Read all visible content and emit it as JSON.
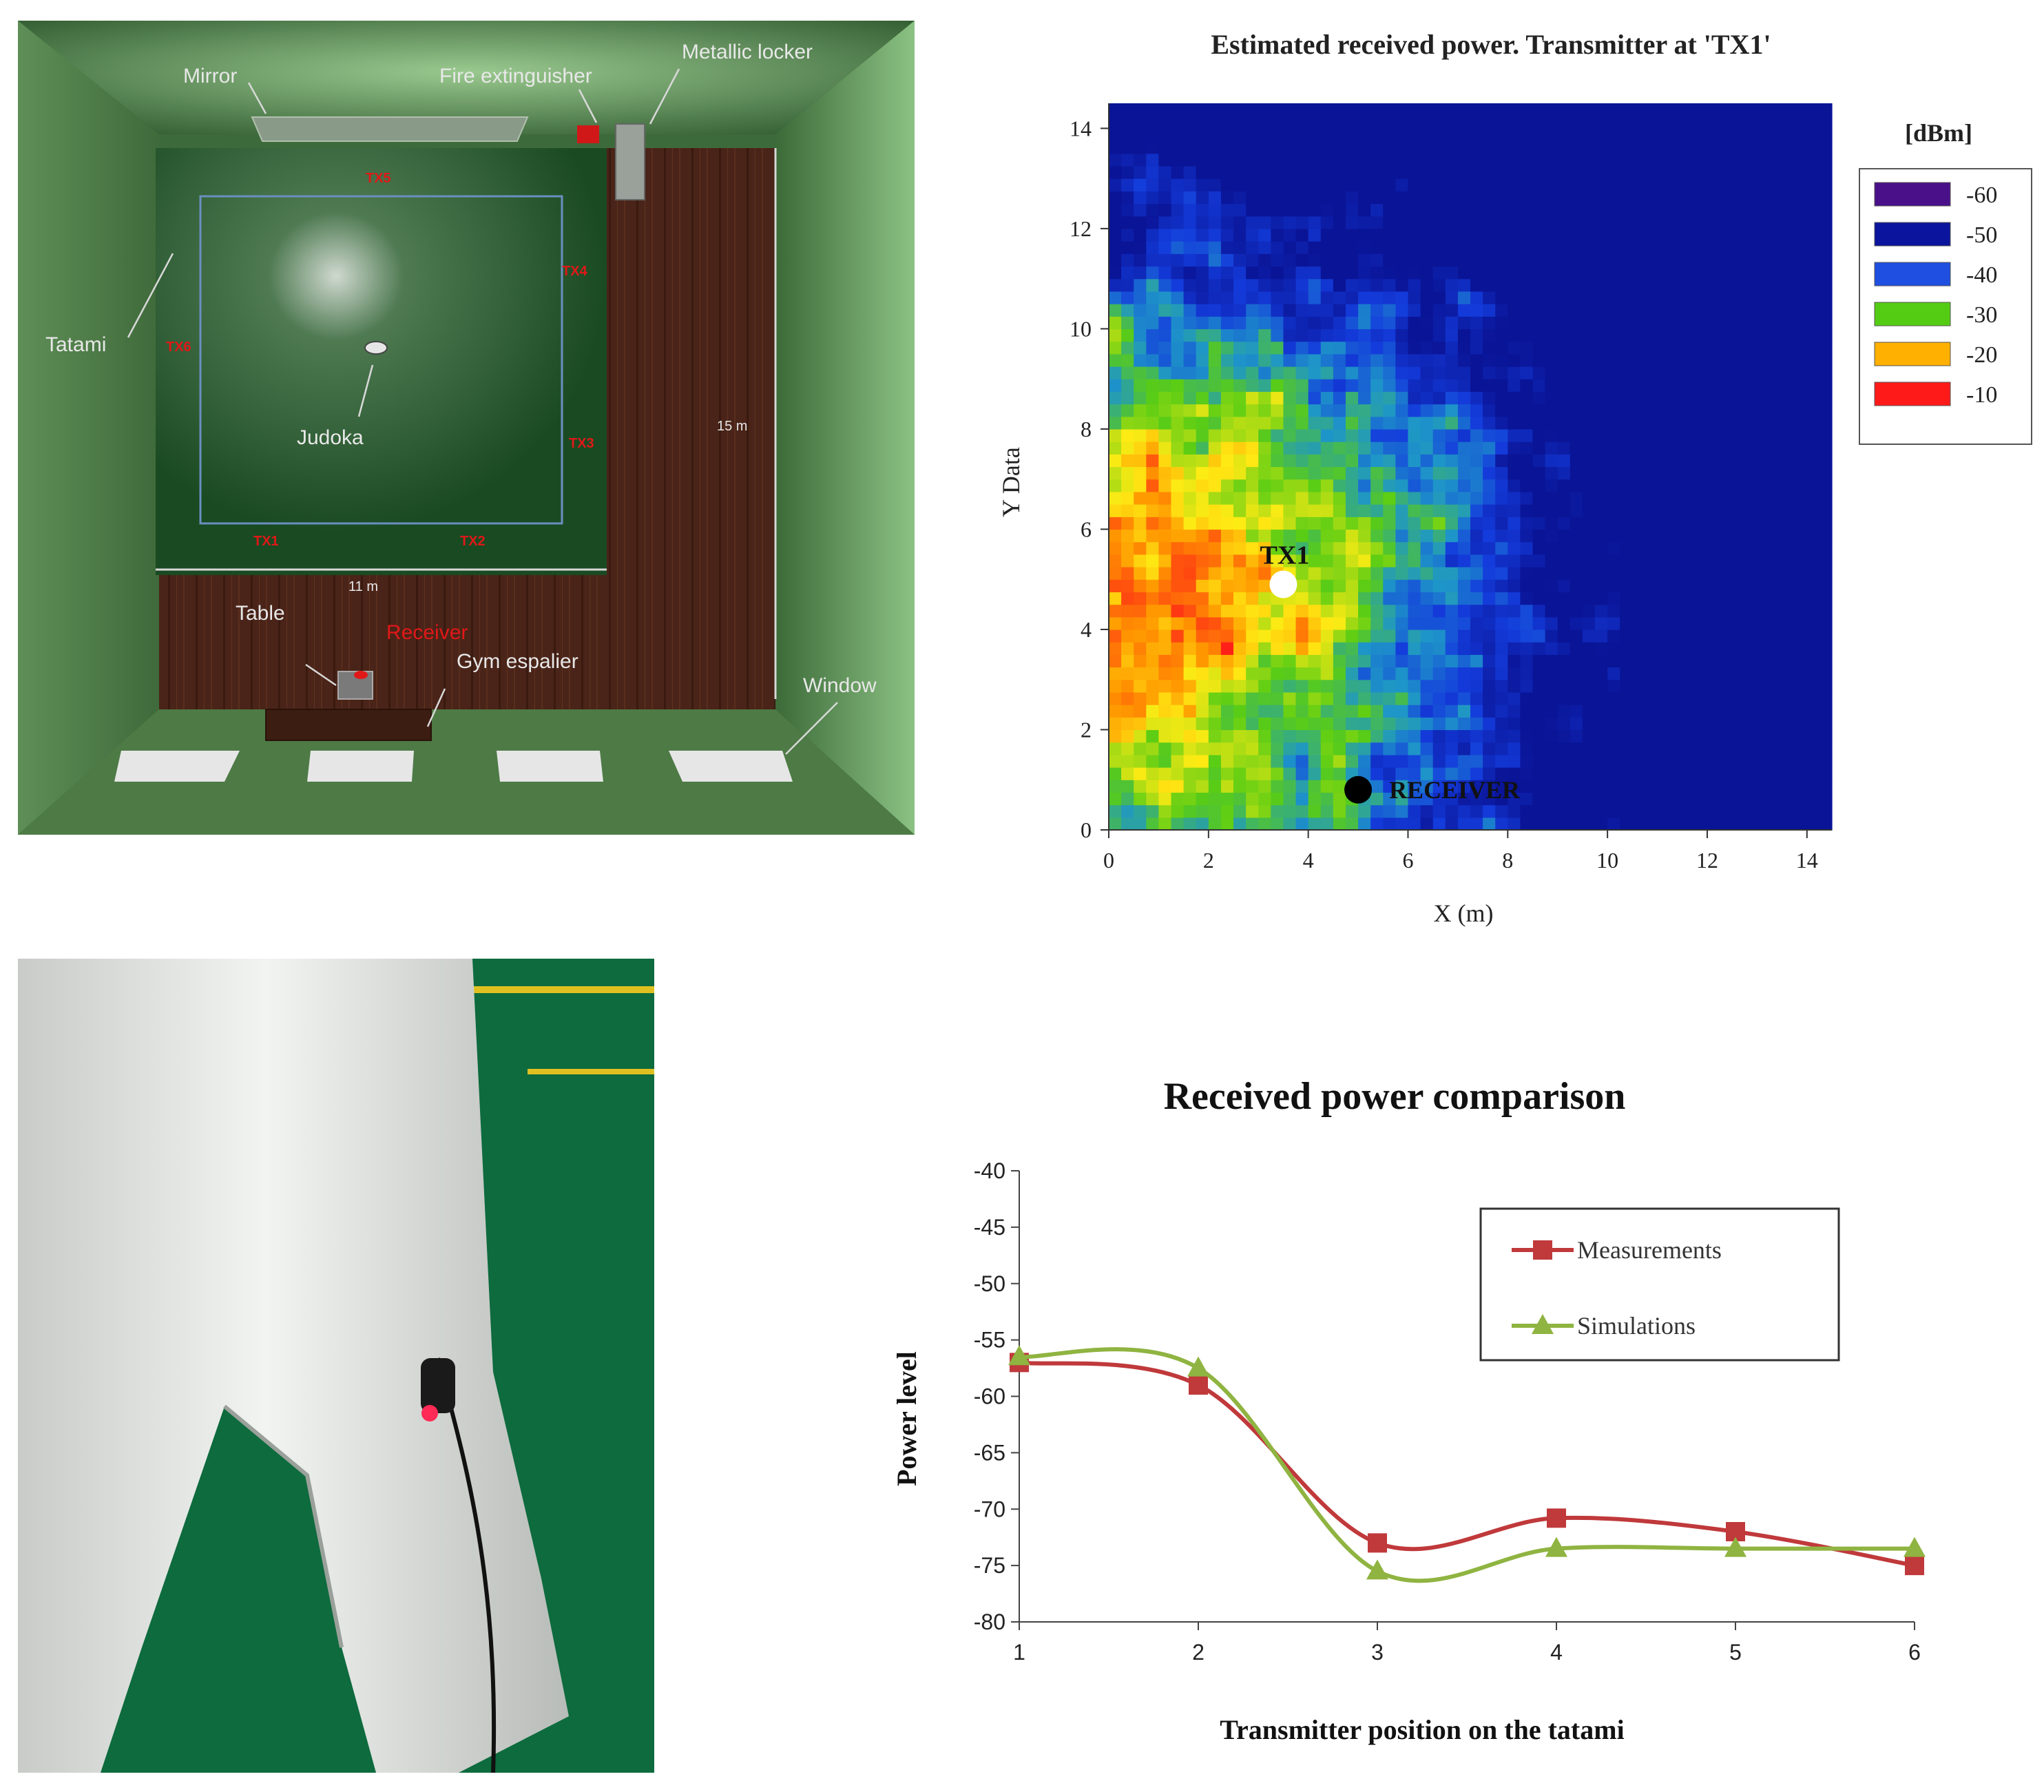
{
  "room": {
    "labels": {
      "mirror": "Mirror",
      "fire_extinguisher": "Fire extinguisher",
      "metallic_locker": "Metallic locker",
      "tatami": "Tatami",
      "judoka": "Judoka",
      "table": "Table",
      "receiver": "Receiver",
      "gym_espalier": "Gym espalier",
      "window": "Window",
      "width_dim": "11 m",
      "length_dim": "15 m"
    },
    "tx_labels": [
      "TX1",
      "TX2",
      "TX3",
      "TX4",
      "TX5",
      "TX6"
    ],
    "colors": {
      "wall": "#4f7a4b",
      "floor_wood": "#4a2418",
      "tatami": "#1f4d26",
      "receiver": "#e01818",
      "tx": "#e01818"
    }
  },
  "photo": {
    "description_icon": "judoka-leg-sensor-photo",
    "colors": {
      "background": "#0d6b3e",
      "gi": "#e4e6e4",
      "sensor_led": "#ff2a55"
    }
  },
  "chart_data": [
    {
      "type": "heatmap",
      "title": "Estimated received power. Transmitter at 'TX1'",
      "xlabel": "X (m)",
      "ylabel": "Y Data",
      "xlim": [
        0,
        14.5
      ],
      "ylim": [
        0,
        14.5
      ],
      "xticks": [
        "0",
        "2",
        "4",
        "6",
        "8",
        "10",
        "12",
        "14"
      ],
      "yticks": [
        "0",
        "2",
        "4",
        "6",
        "8",
        "10",
        "12",
        "14"
      ],
      "legend": {
        "title": "[dBm]",
        "position": "right",
        "entries": [
          {
            "label": "-60",
            "color": "#4a108a"
          },
          {
            "label": "-50",
            "color": "#0a149c"
          },
          {
            "label": "-40",
            "color": "#1e4fe0"
          },
          {
            "label": "-30",
            "color": "#55cc14"
          },
          {
            "label": "-20",
            "color": "#ffb000"
          },
          {
            "label": "-10",
            "color": "#ff1a1a"
          }
        ]
      },
      "annotations": [
        {
          "label": "TX1",
          "x": 3.5,
          "y": 4.9,
          "marker": "white-circle"
        },
        {
          "label": "RECEIVER",
          "x": 5.0,
          "y": 0.8,
          "marker": "black-circle"
        }
      ],
      "hotspot": {
        "x": 1.0,
        "y": 4.5,
        "value": -10
      },
      "field_range": [
        -55,
        -10
      ]
    },
    {
      "type": "line",
      "title": "Received power comparison",
      "xlabel": "Transmitter  position on the tatami",
      "ylabel": "Power level",
      "categories": [
        1,
        2,
        3,
        4,
        5,
        6
      ],
      "ylim": [
        -80,
        -40
      ],
      "yticks": [
        -40,
        -45,
        -50,
        -55,
        -60,
        -65,
        -70,
        -75,
        -80
      ],
      "legend_position": "top-right",
      "series": [
        {
          "name": "Measurements",
          "marker": "square",
          "color": "#c0393b",
          "values": [
            -57,
            -59,
            -73,
            -70.8,
            -72,
            -75
          ]
        },
        {
          "name": "Simulations",
          "marker": "triangle",
          "color": "#8fb441",
          "values": [
            -56.5,
            -57.5,
            -75.5,
            -73.5,
            -73.5,
            -73.5
          ]
        }
      ]
    }
  ]
}
